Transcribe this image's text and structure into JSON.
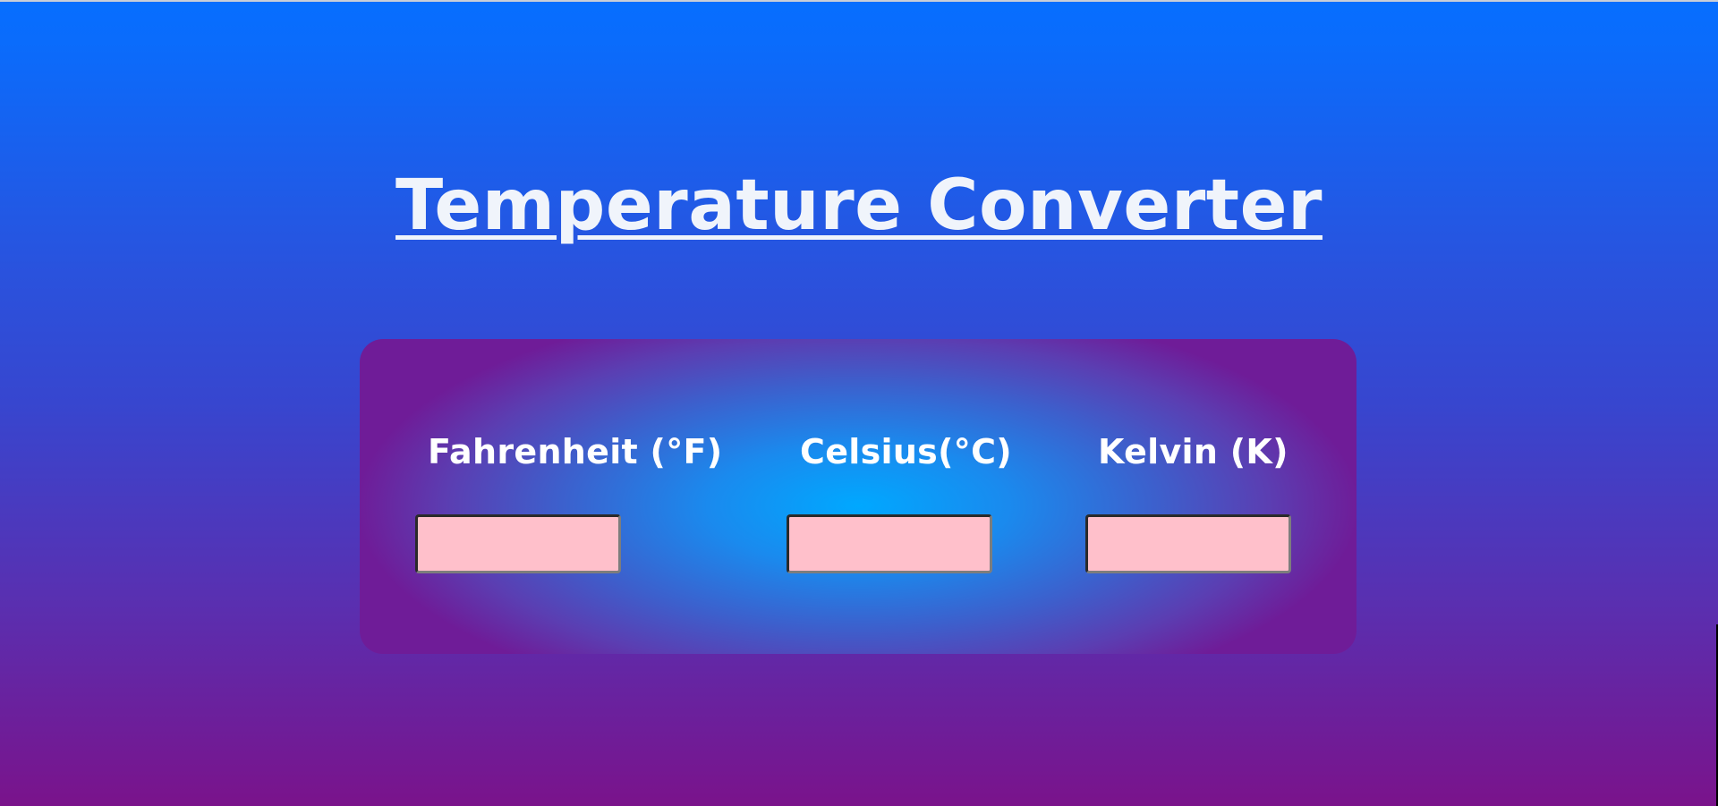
{
  "page": {
    "title": "Temperature Converter"
  },
  "colors": {
    "background_top": "#066eff",
    "background_bottom": "#7a138b",
    "panel_center": "#00a8ff",
    "panel_edge": "#6f1c98",
    "input_fill": "#ffc0cb",
    "text": "#ffffff"
  },
  "converter": {
    "fields": [
      {
        "label": "Fahrenheit (°F)",
        "value": "",
        "placeholder": ""
      },
      {
        "label": "Celsius(°C)",
        "value": "",
        "placeholder": ""
      },
      {
        "label": "Kelvin (K)",
        "value": "",
        "placeholder": ""
      }
    ]
  }
}
